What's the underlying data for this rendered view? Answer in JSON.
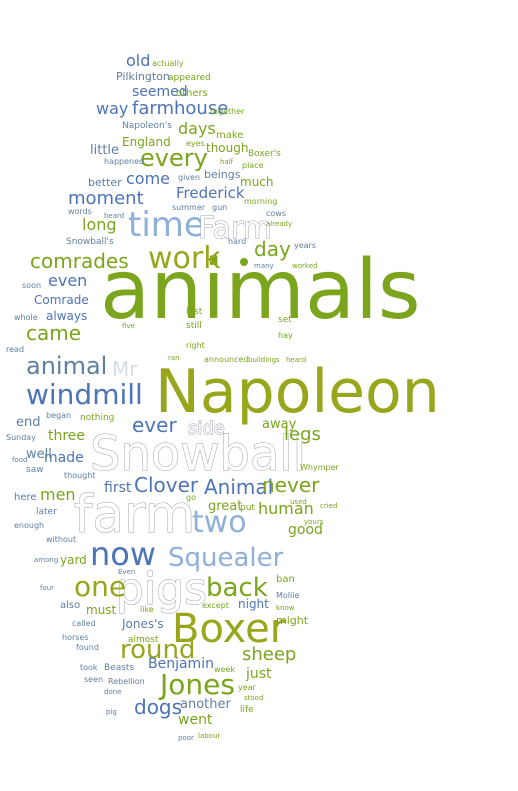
{
  "colors": {
    "green": "#7aa51c",
    "olive": "#98a61c",
    "lightgreen": "#a6c23a",
    "blue": "#4d74b6",
    "lightblue": "#8fb0d8",
    "slate": "#5f7f9f",
    "gray": "#d6dce3",
    "white": "#ffffff"
  },
  "words": [
    {
      "id": "animals",
      "text": "animals"
    },
    {
      "id": "napoleon",
      "text": "Napoleon"
    },
    {
      "id": "snowball",
      "text": "Snowball"
    },
    {
      "id": "farm",
      "text": "farm"
    },
    {
      "id": "boxer",
      "text": "Boxer"
    },
    {
      "id": "pigs",
      "text": "pigs"
    },
    {
      "id": "now",
      "text": "now"
    },
    {
      "id": "work",
      "text": "work"
    },
    {
      "id": "time",
      "text": "time"
    },
    {
      "id": "farm_cap",
      "text": "Farm"
    },
    {
      "id": "windmill",
      "text": "windmill"
    },
    {
      "id": "squealer",
      "text": "Squealer"
    },
    {
      "id": "one",
      "text": "one"
    },
    {
      "id": "two",
      "text": "two"
    },
    {
      "id": "jones",
      "text": "Jones"
    },
    {
      "id": "round",
      "text": "round"
    },
    {
      "id": "back",
      "text": "back"
    },
    {
      "id": "animal",
      "text": "animal"
    },
    {
      "id": "animal_cap",
      "text": "Animal"
    },
    {
      "id": "clover",
      "text": "Clover"
    },
    {
      "id": "every",
      "text": "every"
    },
    {
      "id": "comrades",
      "text": "comrades"
    },
    {
      "id": "day",
      "text": "day"
    },
    {
      "id": "came",
      "text": "came"
    },
    {
      "id": "never",
      "text": "never"
    },
    {
      "id": "mr",
      "text": "Mr"
    },
    {
      "id": "ever",
      "text": "ever"
    },
    {
      "id": "side",
      "text": "side"
    },
    {
      "id": "human",
      "text": "human"
    },
    {
      "id": "dogs",
      "text": "dogs"
    },
    {
      "id": "sheep",
      "text": "sheep"
    },
    {
      "id": "benjamin",
      "text": "Benjamin"
    },
    {
      "id": "legs",
      "text": "legs"
    },
    {
      "id": "moment",
      "text": "moment"
    },
    {
      "id": "frederick",
      "text": "Frederick"
    },
    {
      "id": "come",
      "text": "come"
    },
    {
      "id": "farmhouse",
      "text": "farmhouse"
    },
    {
      "id": "days",
      "text": "days"
    },
    {
      "id": "way",
      "text": "way"
    },
    {
      "id": "seemed",
      "text": "seemed"
    },
    {
      "id": "old",
      "text": "old"
    },
    {
      "id": "long",
      "text": "long"
    },
    {
      "id": "even",
      "text": "even"
    },
    {
      "id": "men",
      "text": "men"
    },
    {
      "id": "made",
      "text": "made"
    },
    {
      "id": "three",
      "text": "three"
    },
    {
      "id": "first",
      "text": "first"
    },
    {
      "id": "good",
      "text": "good"
    },
    {
      "id": "great",
      "text": "great"
    },
    {
      "id": "went",
      "text": "went"
    },
    {
      "id": "another",
      "text": "another"
    },
    {
      "id": "just",
      "text": "just"
    },
    {
      "id": "night",
      "text": "night"
    },
    {
      "id": "might",
      "text": "might"
    },
    {
      "id": "jones_s",
      "text": "Jones's"
    },
    {
      "id": "must",
      "text": "must"
    },
    {
      "id": "away",
      "text": "away"
    },
    {
      "id": "comrade",
      "text": "Comrade"
    },
    {
      "id": "always",
      "text": "always"
    },
    {
      "id": "end",
      "text": "end"
    },
    {
      "id": "well",
      "text": "well"
    },
    {
      "id": "little",
      "text": "little"
    },
    {
      "id": "england",
      "text": "England"
    },
    {
      "id": "though",
      "text": "though"
    },
    {
      "id": "much",
      "text": "much"
    },
    {
      "id": "better",
      "text": "better"
    },
    {
      "id": "beings",
      "text": "beings"
    },
    {
      "id": "pilkington",
      "text": "Pilkington"
    },
    {
      "id": "others",
      "text": "others"
    },
    {
      "id": "appeared",
      "text": "appeared"
    },
    {
      "id": "actually",
      "text": "actually"
    },
    {
      "id": "make",
      "text": "make"
    },
    {
      "id": "snowballs",
      "text": "Snowball's"
    },
    {
      "id": "napoleons",
      "text": "Napoleon's"
    },
    {
      "id": "boxers",
      "text": "Boxer's"
    },
    {
      "id": "together",
      "text": "together"
    },
    {
      "id": "eyes",
      "text": "eyes"
    },
    {
      "id": "place",
      "text": "place"
    },
    {
      "id": "half",
      "text": "half"
    },
    {
      "id": "given",
      "text": "given"
    },
    {
      "id": "happened",
      "text": "happened"
    },
    {
      "id": "summer",
      "text": "summer"
    },
    {
      "id": "gun",
      "text": "gun"
    },
    {
      "id": "morning",
      "text": "morning"
    },
    {
      "id": "words",
      "text": "words"
    },
    {
      "id": "heard",
      "text": "heard"
    },
    {
      "id": "cows",
      "text": "cows"
    },
    {
      "id": "already",
      "text": "already"
    },
    {
      "id": "hard",
      "text": "hard"
    },
    {
      "id": "years",
      "text": "years"
    },
    {
      "id": "many",
      "text": "many"
    },
    {
      "id": "worked",
      "text": "worked"
    },
    {
      "id": "soon",
      "text": "soon"
    },
    {
      "id": "whole",
      "text": "whole"
    },
    {
      "id": "read",
      "text": "read"
    },
    {
      "id": "five",
      "text": "five"
    },
    {
      "id": "last",
      "text": "last"
    },
    {
      "id": "still",
      "text": "still"
    },
    {
      "id": "set",
      "text": "set"
    },
    {
      "id": "hay",
      "text": "hay"
    },
    {
      "id": "right",
      "text": "right"
    },
    {
      "id": "ran",
      "text": "ran"
    },
    {
      "id": "announced",
      "text": "announced"
    },
    {
      "id": "buildings",
      "text": "buildings"
    },
    {
      "id": "heard2",
      "text": "heard"
    },
    {
      "id": "began",
      "text": "began"
    },
    {
      "id": "nothing",
      "text": "nothing"
    },
    {
      "id": "sunday",
      "text": "Sunday"
    },
    {
      "id": "food",
      "text": "food"
    },
    {
      "id": "saw",
      "text": "saw"
    },
    {
      "id": "thought",
      "text": "thought"
    },
    {
      "id": "whymper",
      "text": "Whymper"
    },
    {
      "id": "here",
      "text": "here"
    },
    {
      "id": "later",
      "text": "later"
    },
    {
      "id": "used",
      "text": "used"
    },
    {
      "id": "cried",
      "text": "cried"
    },
    {
      "id": "go",
      "text": "go"
    },
    {
      "id": "put",
      "text": "put"
    },
    {
      "id": "yours",
      "text": "yours"
    },
    {
      "id": "enough",
      "text": "enough"
    },
    {
      "id": "without",
      "text": "without"
    },
    {
      "id": "among",
      "text": "among"
    },
    {
      "id": "yard",
      "text": "yard"
    },
    {
      "id": "ban",
      "text": "ban"
    },
    {
      "id": "four",
      "text": "four"
    },
    {
      "id": "even2",
      "text": "Even"
    },
    {
      "id": "also",
      "text": "also"
    },
    {
      "id": "like",
      "text": "like"
    },
    {
      "id": "except",
      "text": "except"
    },
    {
      "id": "mollie",
      "text": "Mollie"
    },
    {
      "id": "know",
      "text": "know"
    },
    {
      "id": "called",
      "text": "called"
    },
    {
      "id": "horses",
      "text": "horses"
    },
    {
      "id": "almost",
      "text": "almost"
    },
    {
      "id": "found",
      "text": "found"
    },
    {
      "id": "took",
      "text": "took"
    },
    {
      "id": "beasts",
      "text": "Beasts"
    },
    {
      "id": "week",
      "text": "week"
    },
    {
      "id": "seen",
      "text": "seen"
    },
    {
      "id": "rebellion",
      "text": "Rebellion"
    },
    {
      "id": "year",
      "text": "year"
    },
    {
      "id": "done",
      "text": "done"
    },
    {
      "id": "stood",
      "text": "stood"
    },
    {
      "id": "pig",
      "text": "pig"
    },
    {
      "id": "life",
      "text": "life"
    },
    {
      "id": "labour",
      "text": "labour"
    },
    {
      "id": "poor",
      "text": "poor"
    }
  ]
}
